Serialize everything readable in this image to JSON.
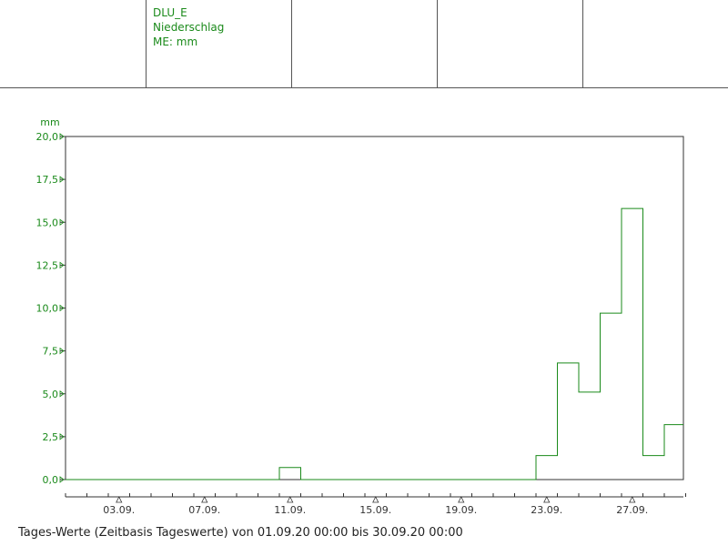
{
  "legend": {
    "name": "DLU_E",
    "parameter": "Niederschlag",
    "unit_label": "ME: mm"
  },
  "colors": {
    "series": "#1a8a1a",
    "axis": "#333333"
  },
  "chart_data": {
    "type": "line",
    "step": true,
    "ylabel": "mm",
    "ylim": [
      0,
      20
    ],
    "yticks": [
      "0,0",
      "2,5",
      "5,0",
      "7,5",
      "10,0",
      "12,5",
      "15,0",
      "17,5",
      "20,0"
    ],
    "xlim": [
      "01.09.",
      "30.09."
    ],
    "xticks": [
      "03.09.",
      "07.09.",
      "11.09.",
      "15.09.",
      "19.09.",
      "23.09.",
      "27.09."
    ],
    "series": [
      {
        "x": [
          "01.09.",
          "02.09.",
          "03.09.",
          "04.09.",
          "05.09.",
          "06.09.",
          "07.09.",
          "08.09.",
          "09.09.",
          "10.09.",
          "11.09.",
          "12.09.",
          "13.09.",
          "14.09.",
          "15.09.",
          "16.09.",
          "17.09.",
          "18.09.",
          "19.09.",
          "20.09.",
          "21.09.",
          "22.09.",
          "23.09.",
          "24.09.",
          "25.09.",
          "26.09.",
          "27.09.",
          "28.09.",
          "29.09."
        ],
        "values": [
          0,
          0,
          0,
          0,
          0,
          0,
          0,
          0,
          0,
          0,
          0.7,
          0,
          0,
          0,
          0,
          0,
          0,
          0,
          0,
          0,
          0,
          0,
          1.4,
          6.8,
          5.1,
          9.7,
          15.8,
          1.4,
          3.2
        ]
      }
    ],
    "grid": false
  },
  "footer": "Tages-Werte (Zeitbasis Tageswerte) von 01.09.20 00:00 bis 30.09.20 00:00"
}
